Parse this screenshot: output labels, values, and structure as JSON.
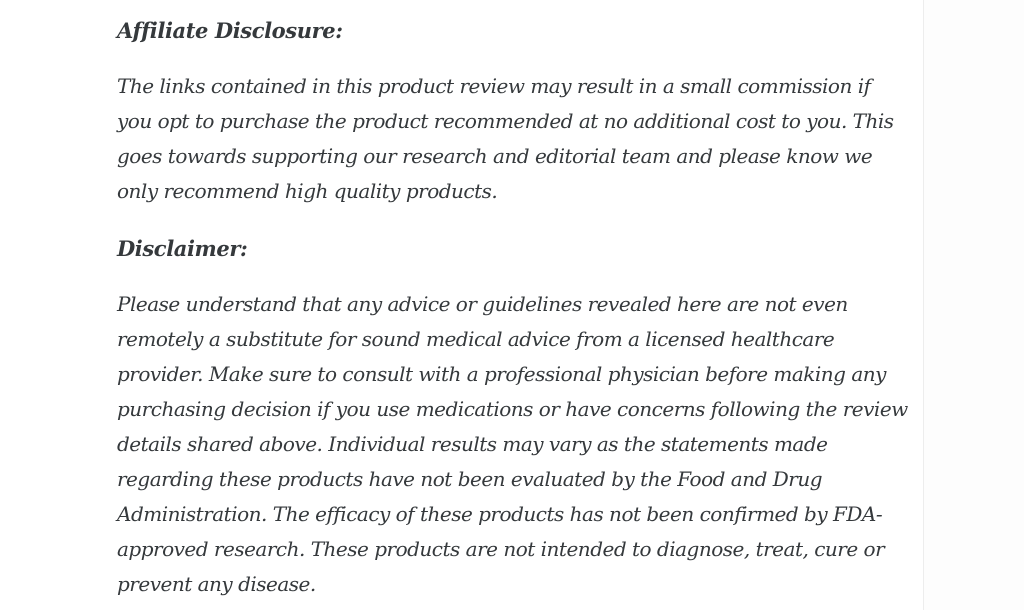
{
  "meta": {
    "page_background": "#fdfdfd",
    "card_background": "#ffffff",
    "divider_color": "#ededed",
    "text_color": "#35393c"
  },
  "article": {
    "sections": [
      {
        "heading": "Affiliate Disclosure:",
        "lines": [
          "The links contained in this product review may result in a small commission if",
          "you opt to purchase the product recommended at no additional cost to you. This",
          "goes towards supporting our research and editorial team and please know we",
          "only recommend high quality products."
        ]
      },
      {
        "heading": "Disclaimer:",
        "lines": [
          "Please understand that any advice or guidelines revealed here are not even",
          "remotely a substitute for sound medical advice from a licensed healthcare",
          "provider. Make sure to consult with a professional physician before making any",
          "purchasing decision if you use medications or have concerns following the review",
          "details shared above. Individual results may vary as the statements made",
          "regarding these products have not been evaluated by the Food and Drug",
          "Administration. The efficacy of these products has not been confirmed by FDA-",
          "approved research. These products are not intended to diagnose, treat, cure or",
          "prevent any disease."
        ]
      }
    ]
  }
}
